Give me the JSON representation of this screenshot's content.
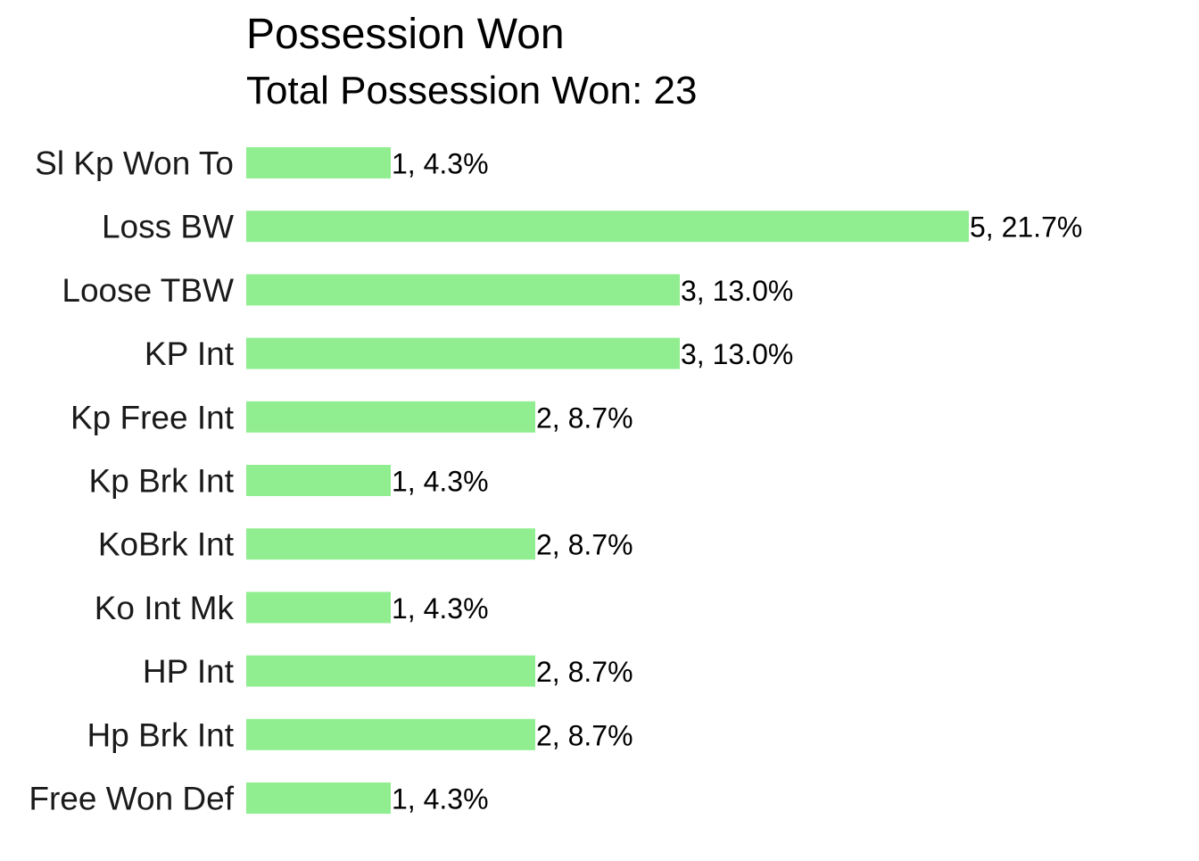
{
  "chart_data": {
    "type": "bar",
    "orientation": "horizontal",
    "title": "Possession Won",
    "subtitle": "Total Possession Won: 23",
    "xlabel": "",
    "ylabel": "",
    "grid": false,
    "bar_color": "#90EE90",
    "xlim": [
      0,
      5
    ],
    "categories": [
      "Sl Kp Won To",
      "Loss BW",
      "Loose TBW",
      "KP Int",
      "Kp Free Int",
      "Kp Brk Int",
      "KoBrk Int",
      "Ko Int Mk",
      "HP Int",
      "Hp Brk Int",
      "Free Won Def"
    ],
    "values": [
      1,
      5,
      3,
      3,
      2,
      1,
      2,
      1,
      2,
      2,
      1
    ],
    "data_labels": [
      "1, 4.3%",
      "5, 21.7%",
      "3, 13.0%",
      "3, 13.0%",
      "2, 8.7%",
      "1, 4.3%",
      "2, 8.7%",
      "1, 4.3%",
      "2, 8.7%",
      "2, 8.7%",
      "1, 4.3%"
    ]
  }
}
